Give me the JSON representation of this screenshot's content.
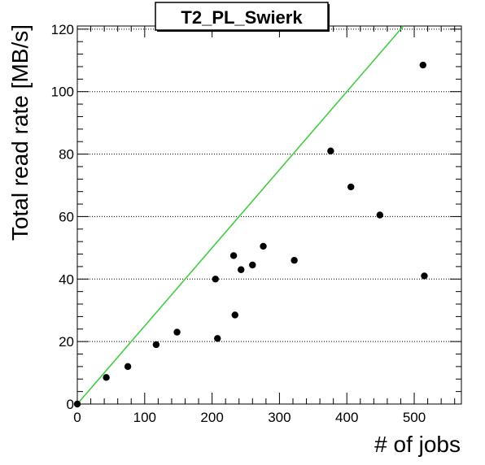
{
  "chart_data": {
    "type": "scatter",
    "title": "T2_PL_Swierk",
    "xlabel": "# of jobs",
    "ylabel": "Total read rate [MB/s]",
    "xlim": [
      0,
      570
    ],
    "ylim": [
      0,
      121
    ],
    "xticks": [
      0,
      100,
      200,
      300,
      400,
      500
    ],
    "yticks": [
      0,
      20,
      40,
      60,
      80,
      100,
      120
    ],
    "grid": "horizontal-dotted",
    "points": [
      {
        "x": 0,
        "y": 0
      },
      {
        "x": 43,
        "y": 8.5
      },
      {
        "x": 75,
        "y": 12
      },
      {
        "x": 117,
        "y": 19
      },
      {
        "x": 148,
        "y": 23
      },
      {
        "x": 205,
        "y": 40
      },
      {
        "x": 208,
        "y": 21
      },
      {
        "x": 232,
        "y": 47.5
      },
      {
        "x": 234,
        "y": 28.5
      },
      {
        "x": 243,
        "y": 43
      },
      {
        "x": 260,
        "y": 44.5
      },
      {
        "x": 276,
        "y": 50.5
      },
      {
        "x": 322,
        "y": 46
      },
      {
        "x": 376,
        "y": 81
      },
      {
        "x": 406,
        "y": 69.5
      },
      {
        "x": 449,
        "y": 60.5
      },
      {
        "x": 513,
        "y": 108.5
      },
      {
        "x": 515,
        "y": 41
      }
    ],
    "reference_line": {
      "x": [
        0,
        484
      ],
      "y": [
        0,
        121
      ],
      "color": "#44cc44"
    },
    "marker_color": "#000000"
  }
}
